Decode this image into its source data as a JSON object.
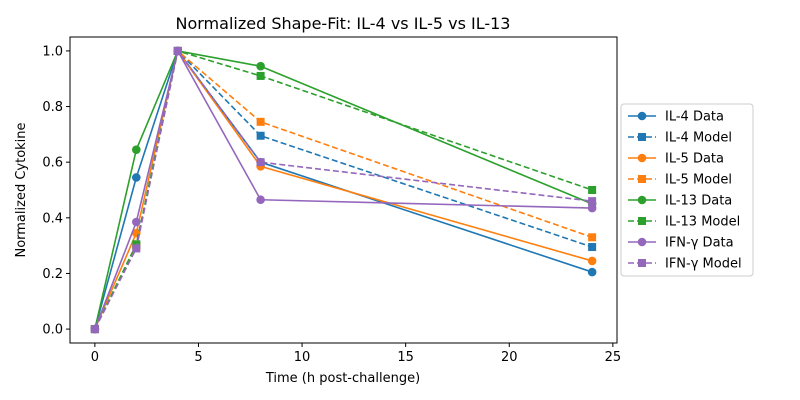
{
  "chart_data": {
    "type": "line",
    "title": "Normalized Shape-Fit: IL-4 vs IL-5 vs IL-13",
    "xlabel": "Time (h post-challenge)",
    "ylabel": "Normalized Cytokine",
    "x": [
      0,
      2,
      4,
      8,
      24
    ],
    "xlim": [
      -1.2,
      25.2
    ],
    "ylim": [
      -0.05,
      1.05
    ],
    "xticks": [
      0,
      5,
      10,
      15,
      20,
      25
    ],
    "yticks": [
      0.0,
      0.2,
      0.4,
      0.6,
      0.8,
      1.0
    ],
    "grid": false,
    "legend_position": "right, outside plot area",
    "series": [
      {
        "name": "IL-4 Data",
        "color": "#1f77b4",
        "line": "solid",
        "marker": "circle",
        "values": [
          0.0,
          0.545,
          1.0,
          0.6,
          0.205
        ]
      },
      {
        "name": "IL-4 Model",
        "color": "#1f77b4",
        "line": "dashed",
        "marker": "square",
        "values": [
          0.0,
          0.3,
          1.0,
          0.695,
          0.295
        ]
      },
      {
        "name": "IL-5 Data",
        "color": "#ff7f0e",
        "line": "solid",
        "marker": "circle",
        "values": [
          0.0,
          0.345,
          1.0,
          0.585,
          0.245
        ]
      },
      {
        "name": "IL-5 Model",
        "color": "#ff7f0e",
        "line": "dashed",
        "marker": "square",
        "values": [
          0.0,
          0.3,
          1.0,
          0.745,
          0.33
        ]
      },
      {
        "name": "IL-13 Data",
        "color": "#2ca02c",
        "line": "solid",
        "marker": "circle",
        "values": [
          0.0,
          0.645,
          1.0,
          0.945,
          0.45
        ]
      },
      {
        "name": "IL-13 Model",
        "color": "#2ca02c",
        "line": "dashed",
        "marker": "square",
        "values": [
          0.0,
          0.305,
          1.0,
          0.91,
          0.5
        ]
      },
      {
        "name": "IFN-γ Data",
        "color": "#9467bd",
        "line": "solid",
        "marker": "circle",
        "values": [
          0.0,
          0.385,
          1.0,
          0.465,
          0.435
        ]
      },
      {
        "name": "IFN-γ Model",
        "color": "#9467bd",
        "line": "dashed",
        "marker": "square",
        "values": [
          0.0,
          0.29,
          1.0,
          0.6,
          0.46
        ]
      }
    ]
  }
}
